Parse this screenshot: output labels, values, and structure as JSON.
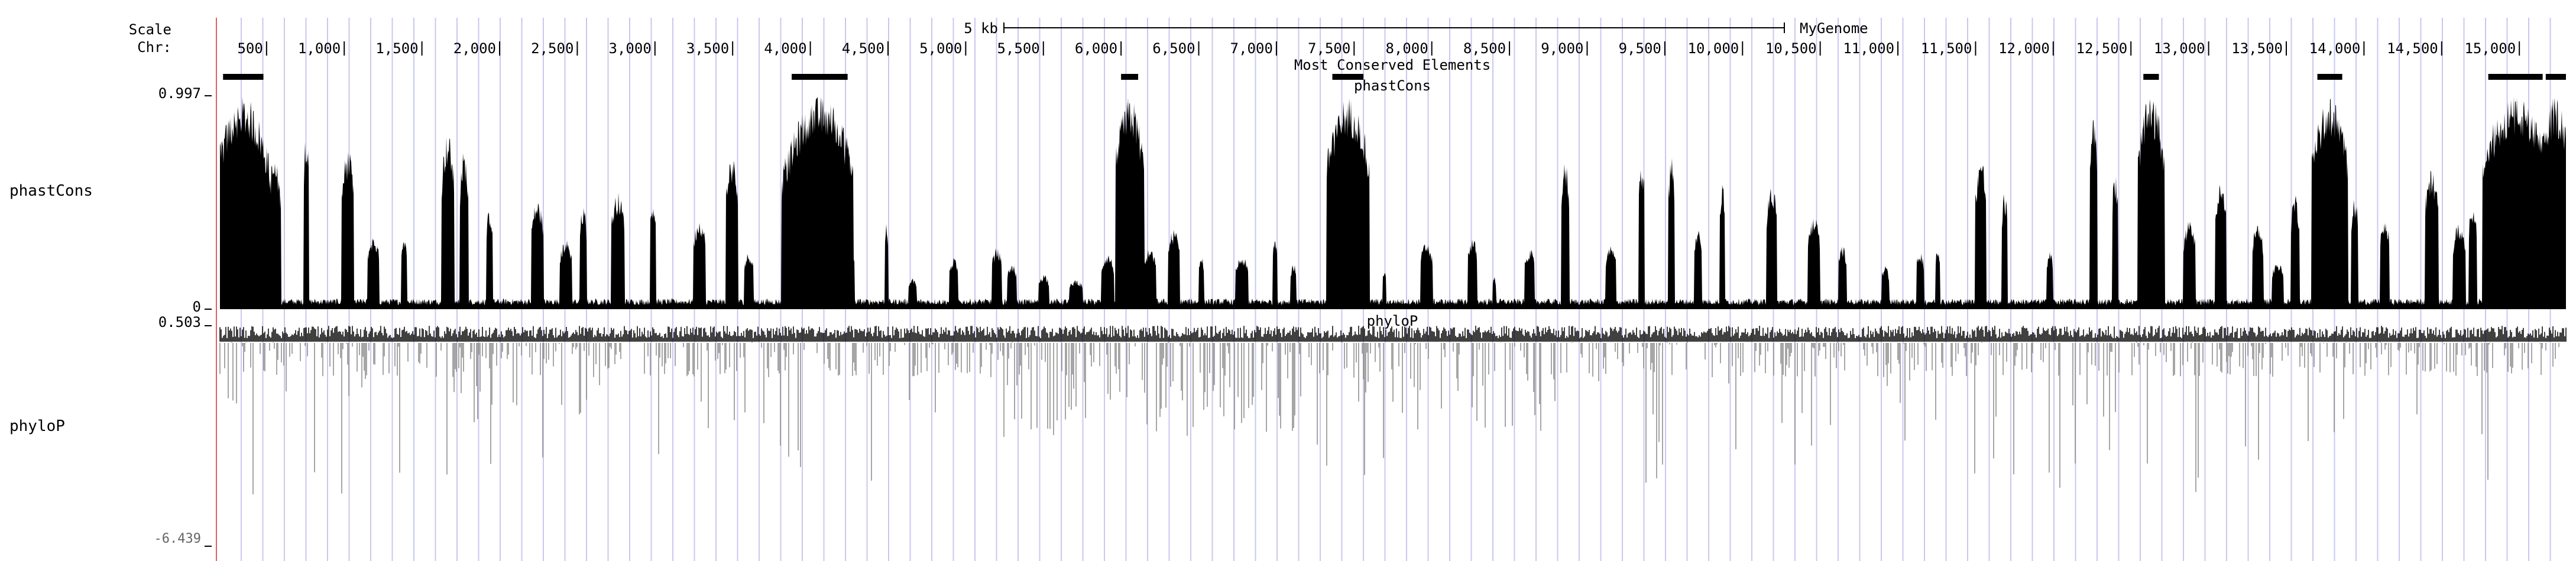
{
  "ruler": {
    "scale_label": "Scale",
    "chr_label": "Chr:",
    "scale_bar_text": "5 kb",
    "assembly": "MyGenome",
    "positions": [
      "500",
      "1,000",
      "1,500",
      "2,000",
      "2,500",
      "3,000",
      "3,500",
      "4,000",
      "4,500",
      "5,000",
      "5,500",
      "6,000",
      "6,500",
      "7,000",
      "7,500",
      "8,000",
      "8,500",
      "9,000",
      "9,500",
      "10,000",
      "10,500",
      "11,000",
      "11,500",
      "12,000",
      "12,500",
      "13,000",
      "13,500",
      "14,000",
      "14,500",
      "15,000"
    ]
  },
  "region": {
    "start": 200,
    "end": 15300
  },
  "elements_track": {
    "title": "Most Conserved Elements",
    "blocks": [
      [
        220,
        480
      ],
      [
        3880,
        4240
      ],
      [
        6000,
        6110
      ],
      [
        7360,
        7560
      ],
      [
        12580,
        12680
      ],
      [
        13700,
        13860
      ],
      [
        14800,
        15150
      ],
      [
        15170,
        15300
      ]
    ]
  },
  "phastcons": {
    "side_label": "phastCons",
    "title": "phastCons",
    "ymax": "0.997",
    "ymin": "0",
    "max_value": 0.997,
    "color": "#000000"
  },
  "phylop": {
    "side_label": "phyloP",
    "title": "phyloP",
    "ymax": "0.503",
    "ymin": "-6.439",
    "max_value": 0.503,
    "min_value": -6.439,
    "pos_color": "#000000",
    "neg_color": "#888888"
  },
  "colors": {
    "gridline": "#c8c8f0",
    "left_border": "#e06060"
  }
}
